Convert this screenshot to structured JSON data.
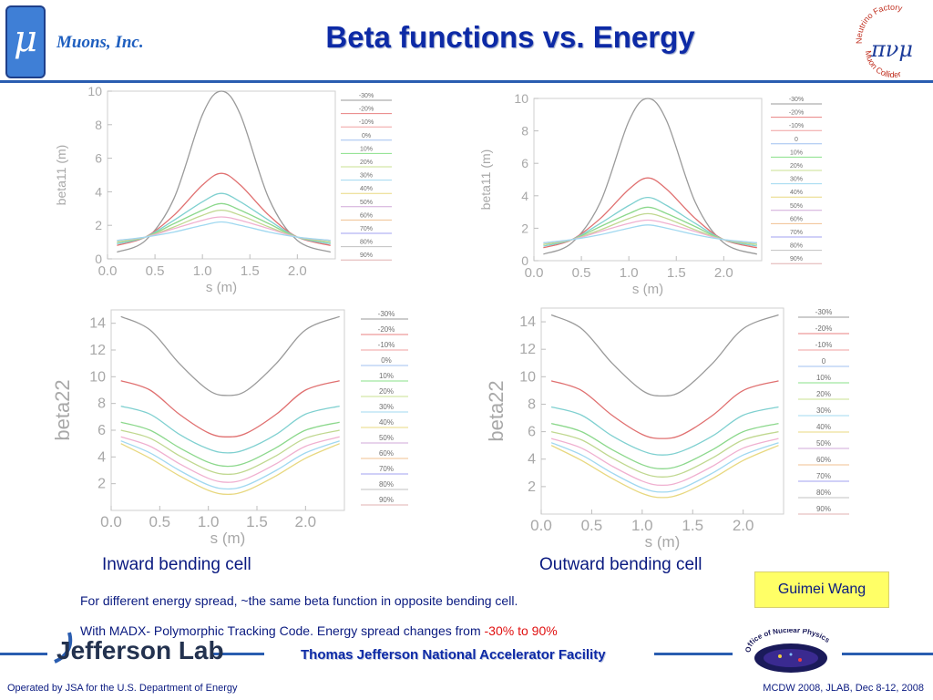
{
  "header": {
    "logo_glyph": "μ",
    "company": "Muons, Inc.",
    "title": "Beta functions vs. Energy",
    "nf_logo": {
      "top_text": "Neutrino Factory",
      "bottom_text": "Muon Collider",
      "glyph": "πνμ"
    }
  },
  "captions": {
    "left": "Inward bending cell",
    "right": "Outward bending cell"
  },
  "notes": {
    "line1": "For different energy spread, ~the same beta function in opposite bending cell.",
    "line2_prefix": "With MADX- Polymorphic Tracking Code. Energy spread changes from ",
    "line2_range": "-30% to 90%"
  },
  "author": "Guimei Wang",
  "footer": {
    "jlab": "Jefferson Lab",
    "facility": "Thomas Jefferson National Accelerator Facility",
    "onp": "Office of Nuclear Physics",
    "left": "Operated by JSA for the U.S. Department of Energy",
    "right": "MCDW 2008, JLAB, Dec 8-12, 2008"
  },
  "series_colors": [
    "#9a9a9a",
    "#e88080",
    "#f0a0a0",
    "#7fd6d6",
    "#88e088",
    "#b0d0a0",
    "#a8e0f0",
    "#e0e080",
    "#d0a0d0",
    "#f0c080",
    "#a0a0f0",
    "#c0c0c0",
    "#e0b0b0"
  ],
  "chart_data": [
    {
      "type": "line",
      "panel": "beta11-inward",
      "xlabel": "s (m)",
      "ylabel": "beta11 (m)",
      "xlim": [
        0,
        2.4
      ],
      "ylim": [
        0,
        10
      ],
      "xticks": [
        "0.0",
        "0.5",
        "1.0",
        "1.5",
        "2.0"
      ],
      "yticks": [
        "0",
        "2",
        "4",
        "6",
        "8",
        "10"
      ],
      "legend": [
        "-30%",
        "-20%",
        "-10%",
        "0%",
        "10%",
        "20%",
        "30%",
        "40%",
        "50%",
        "60%",
        "70%",
        "80%",
        "90%"
      ],
      "x": [
        0.1,
        0.4,
        0.7,
        1.0,
        1.2,
        1.4,
        1.7,
        2.0,
        2.35
      ],
      "series": [
        {
          "name": "-30%",
          "values": [
            0.4,
            1.1,
            3.6,
            8.6,
            10.0,
            8.6,
            3.6,
            1.1,
            0.4
          ]
        },
        {
          "name": "-20%",
          "values": [
            0.8,
            1.3,
            2.6,
            4.4,
            5.1,
            4.4,
            2.6,
            1.3,
            0.8
          ]
        },
        {
          "name": "-10%",
          "values": [
            0.9,
            1.3,
            2.3,
            3.4,
            3.9,
            3.4,
            2.3,
            1.3,
            0.9
          ]
        },
        {
          "name": "20%",
          "values": [
            1.0,
            1.3,
            2.1,
            2.9,
            3.3,
            2.9,
            2.1,
            1.3,
            1.0
          ]
        },
        {
          "name": "40%",
          "values": [
            1.0,
            1.3,
            1.9,
            2.6,
            2.9,
            2.6,
            1.9,
            1.3,
            1.0
          ]
        },
        {
          "name": "60%",
          "values": [
            1.1,
            1.3,
            1.8,
            2.3,
            2.5,
            2.3,
            1.8,
            1.3,
            1.1
          ]
        },
        {
          "name": "90%",
          "values": [
            1.1,
            1.3,
            1.6,
            2.0,
            2.2,
            2.0,
            1.6,
            1.3,
            1.1
          ]
        }
      ]
    },
    {
      "type": "line",
      "panel": "beta11-outward",
      "xlabel": "s (m)",
      "ylabel": "beta11 (m)",
      "xlim": [
        0,
        2.4
      ],
      "ylim": [
        0,
        10
      ],
      "xticks": [
        "0.0",
        "0.5",
        "1.0",
        "1.5",
        "2.0"
      ],
      "yticks": [
        "0",
        "2",
        "4",
        "6",
        "8",
        "10"
      ],
      "legend": [
        "-30%",
        "-20%",
        "-10%",
        "0",
        "10%",
        "20%",
        "30%",
        "40%",
        "50%",
        "60%",
        "70%",
        "80%",
        "90%"
      ],
      "x": [
        0.1,
        0.4,
        0.7,
        1.0,
        1.2,
        1.4,
        1.7,
        2.0,
        2.35
      ],
      "series": [
        {
          "name": "-30%",
          "values": [
            0.4,
            1.1,
            3.6,
            8.6,
            10.0,
            8.6,
            3.6,
            1.1,
            0.4
          ]
        },
        {
          "name": "-20%",
          "values": [
            0.8,
            1.3,
            2.6,
            4.4,
            5.1,
            4.4,
            2.6,
            1.3,
            0.8
          ]
        },
        {
          "name": "-10%",
          "values": [
            0.9,
            1.3,
            2.3,
            3.4,
            3.9,
            3.4,
            2.3,
            1.3,
            0.9
          ]
        },
        {
          "name": "20%",
          "values": [
            1.0,
            1.3,
            2.1,
            2.9,
            3.3,
            2.9,
            2.1,
            1.3,
            1.0
          ]
        },
        {
          "name": "40%",
          "values": [
            1.0,
            1.3,
            1.9,
            2.6,
            2.9,
            2.6,
            1.9,
            1.3,
            1.0
          ]
        },
        {
          "name": "60%",
          "values": [
            1.1,
            1.3,
            1.8,
            2.3,
            2.5,
            2.3,
            1.8,
            1.3,
            1.1
          ]
        },
        {
          "name": "90%",
          "values": [
            1.1,
            1.3,
            1.6,
            2.0,
            2.2,
            2.0,
            1.6,
            1.3,
            1.1
          ]
        }
      ]
    },
    {
      "type": "line",
      "panel": "beta22-inward",
      "xlabel": "s (m)",
      "ylabel": "beta22",
      "xlim": [
        0,
        2.4
      ],
      "ylim": [
        0,
        15
      ],
      "xticks": [
        "0.0",
        "0.5",
        "1.0",
        "1.5",
        "2.0"
      ],
      "yticks": [
        "2",
        "4",
        "6",
        "8",
        "10",
        "12",
        "14"
      ],
      "legend": [
        "-30%",
        "-20%",
        "-10%",
        "0%",
        "10%",
        "20%",
        "30%",
        "40%",
        "50%",
        "60%",
        "70%",
        "80%",
        "90%"
      ],
      "x": [
        0.1,
        0.4,
        0.7,
        1.0,
        1.2,
        1.4,
        1.7,
        2.0,
        2.35
      ],
      "series": [
        {
          "name": "-30%",
          "values": [
            14.5,
            13.5,
            11.0,
            9.0,
            8.6,
            9.0,
            11.0,
            13.5,
            14.5
          ]
        },
        {
          "name": "-20%",
          "values": [
            9.7,
            9.0,
            7.2,
            5.8,
            5.5,
            5.8,
            7.2,
            9.0,
            9.7
          ]
        },
        {
          "name": "-10%",
          "values": [
            7.8,
            7.2,
            5.7,
            4.6,
            4.3,
            4.6,
            5.7,
            7.2,
            7.8
          ]
        },
        {
          "name": "10%",
          "values": [
            6.6,
            6.0,
            4.7,
            3.6,
            3.3,
            3.6,
            4.7,
            6.0,
            6.6
          ]
        },
        {
          "name": "30%",
          "values": [
            6.0,
            5.4,
            4.1,
            3.0,
            2.7,
            3.0,
            4.1,
            5.4,
            6.0
          ]
        },
        {
          "name": "50%",
          "values": [
            5.5,
            4.8,
            3.5,
            2.4,
            2.1,
            2.4,
            3.5,
            4.8,
            5.5
          ]
        },
        {
          "name": "70%",
          "values": [
            5.2,
            4.3,
            3.0,
            1.9,
            1.6,
            1.9,
            3.0,
            4.3,
            5.2
          ]
        },
        {
          "name": "90%",
          "values": [
            5.0,
            3.9,
            2.6,
            1.5,
            1.2,
            1.5,
            2.6,
            3.9,
            5.0
          ]
        }
      ]
    },
    {
      "type": "line",
      "panel": "beta22-outward",
      "xlabel": "s (m)",
      "ylabel": "beta22",
      "xlim": [
        0,
        2.4
      ],
      "ylim": [
        0,
        15
      ],
      "xticks": [
        "0.0",
        "0.5",
        "1.0",
        "1.5",
        "2.0"
      ],
      "yticks": [
        "2",
        "4",
        "6",
        "8",
        "10",
        "12",
        "14"
      ],
      "legend": [
        "-30%",
        "-20%",
        "-10%",
        "0",
        "10%",
        "20%",
        "30%",
        "40%",
        "50%",
        "60%",
        "70%",
        "80%",
        "90%"
      ],
      "x": [
        0.1,
        0.4,
        0.7,
        1.0,
        1.2,
        1.4,
        1.7,
        2.0,
        2.35
      ],
      "series": [
        {
          "name": "-30%",
          "values": [
            14.5,
            13.5,
            11.0,
            9.0,
            8.6,
            9.0,
            11.0,
            13.5,
            14.5
          ]
        },
        {
          "name": "-20%",
          "values": [
            9.7,
            9.0,
            7.2,
            5.8,
            5.5,
            5.8,
            7.2,
            9.0,
            9.7
          ]
        },
        {
          "name": "-10%",
          "values": [
            7.8,
            7.2,
            5.7,
            4.6,
            4.3,
            4.6,
            5.7,
            7.2,
            7.8
          ]
        },
        {
          "name": "10%",
          "values": [
            6.6,
            6.0,
            4.7,
            3.6,
            3.3,
            3.6,
            4.7,
            6.0,
            6.6
          ]
        },
        {
          "name": "30%",
          "values": [
            6.0,
            5.4,
            4.1,
            3.0,
            2.7,
            3.0,
            4.1,
            5.4,
            6.0
          ]
        },
        {
          "name": "50%",
          "values": [
            5.5,
            4.8,
            3.5,
            2.4,
            2.1,
            2.4,
            3.5,
            4.8,
            5.5
          ]
        },
        {
          "name": "70%",
          "values": [
            5.2,
            4.3,
            3.0,
            1.9,
            1.6,
            1.9,
            3.0,
            4.3,
            5.2
          ]
        },
        {
          "name": "90%",
          "values": [
            5.0,
            3.9,
            2.6,
            1.5,
            1.2,
            1.5,
            2.6,
            3.9,
            5.0
          ]
        }
      ]
    }
  ]
}
